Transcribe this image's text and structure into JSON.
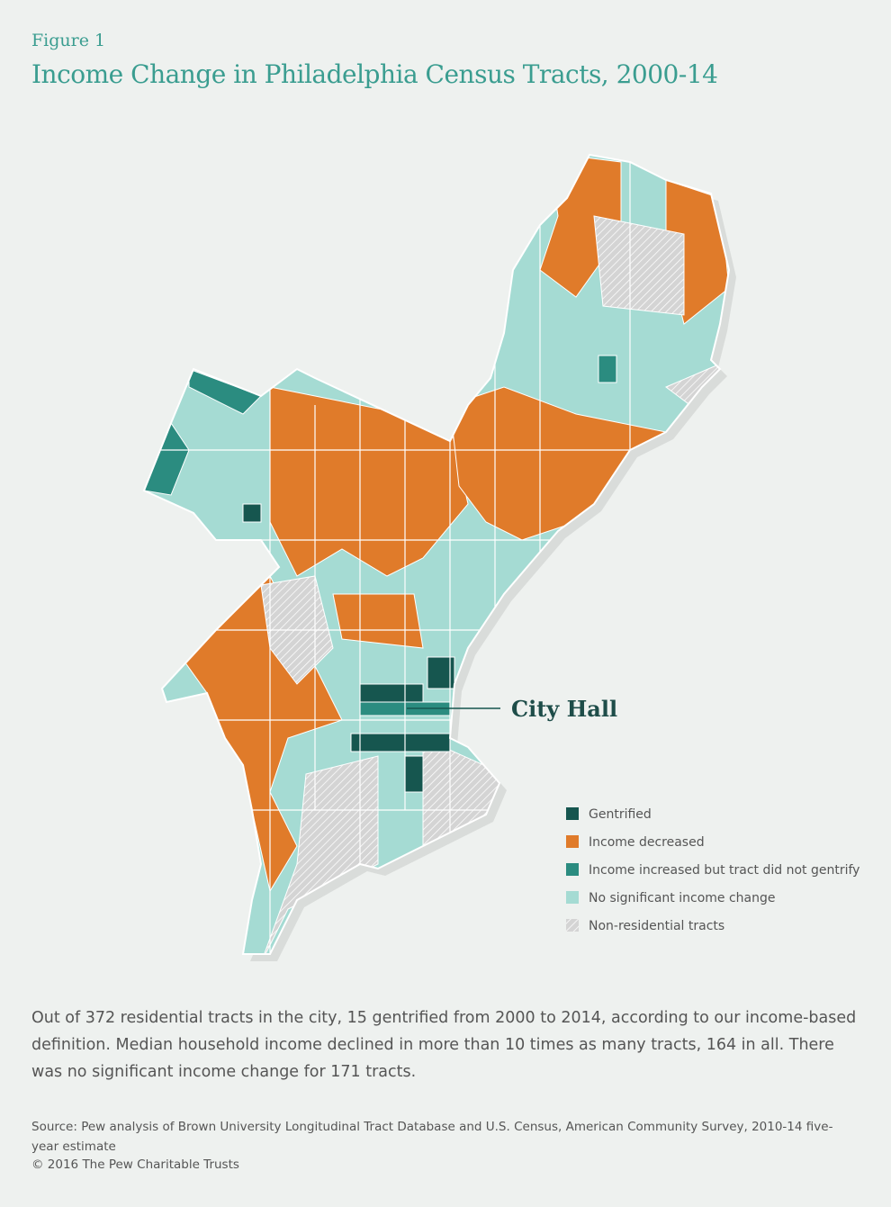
{
  "figure_label": "Figure 1",
  "title": "Income Change in Philadelphia Census Tracts, 2000-14",
  "callout": "City Hall",
  "legend": {
    "items": [
      {
        "label": "Gentrified",
        "color": "#16564f"
      },
      {
        "label": "Income decreased",
        "color": "#e07b2a"
      },
      {
        "label": "Income increased but tract did not gentrify",
        "color": "#2b8c80"
      },
      {
        "label": "No significant income change",
        "color": "#a5dbd3"
      },
      {
        "label": "Non-residential tracts",
        "color": "#cfcfcf",
        "pattern": "hatch"
      }
    ]
  },
  "body": "Out of 372 residential tracts in the city, 15 gentrified from 2000 to 2014, according to our income-based definition. Median household income declined in more than 10 times as many tracts, 164 in all. There was no significant income change for 171 tracts.",
  "source": "Source: Pew analysis of Brown University Longitudinal Tract Database and U.S. Census, American Community Survey, 2010-14 five-year estimate",
  "copyright": "© 2016 The Pew Charitable Trusts"
}
